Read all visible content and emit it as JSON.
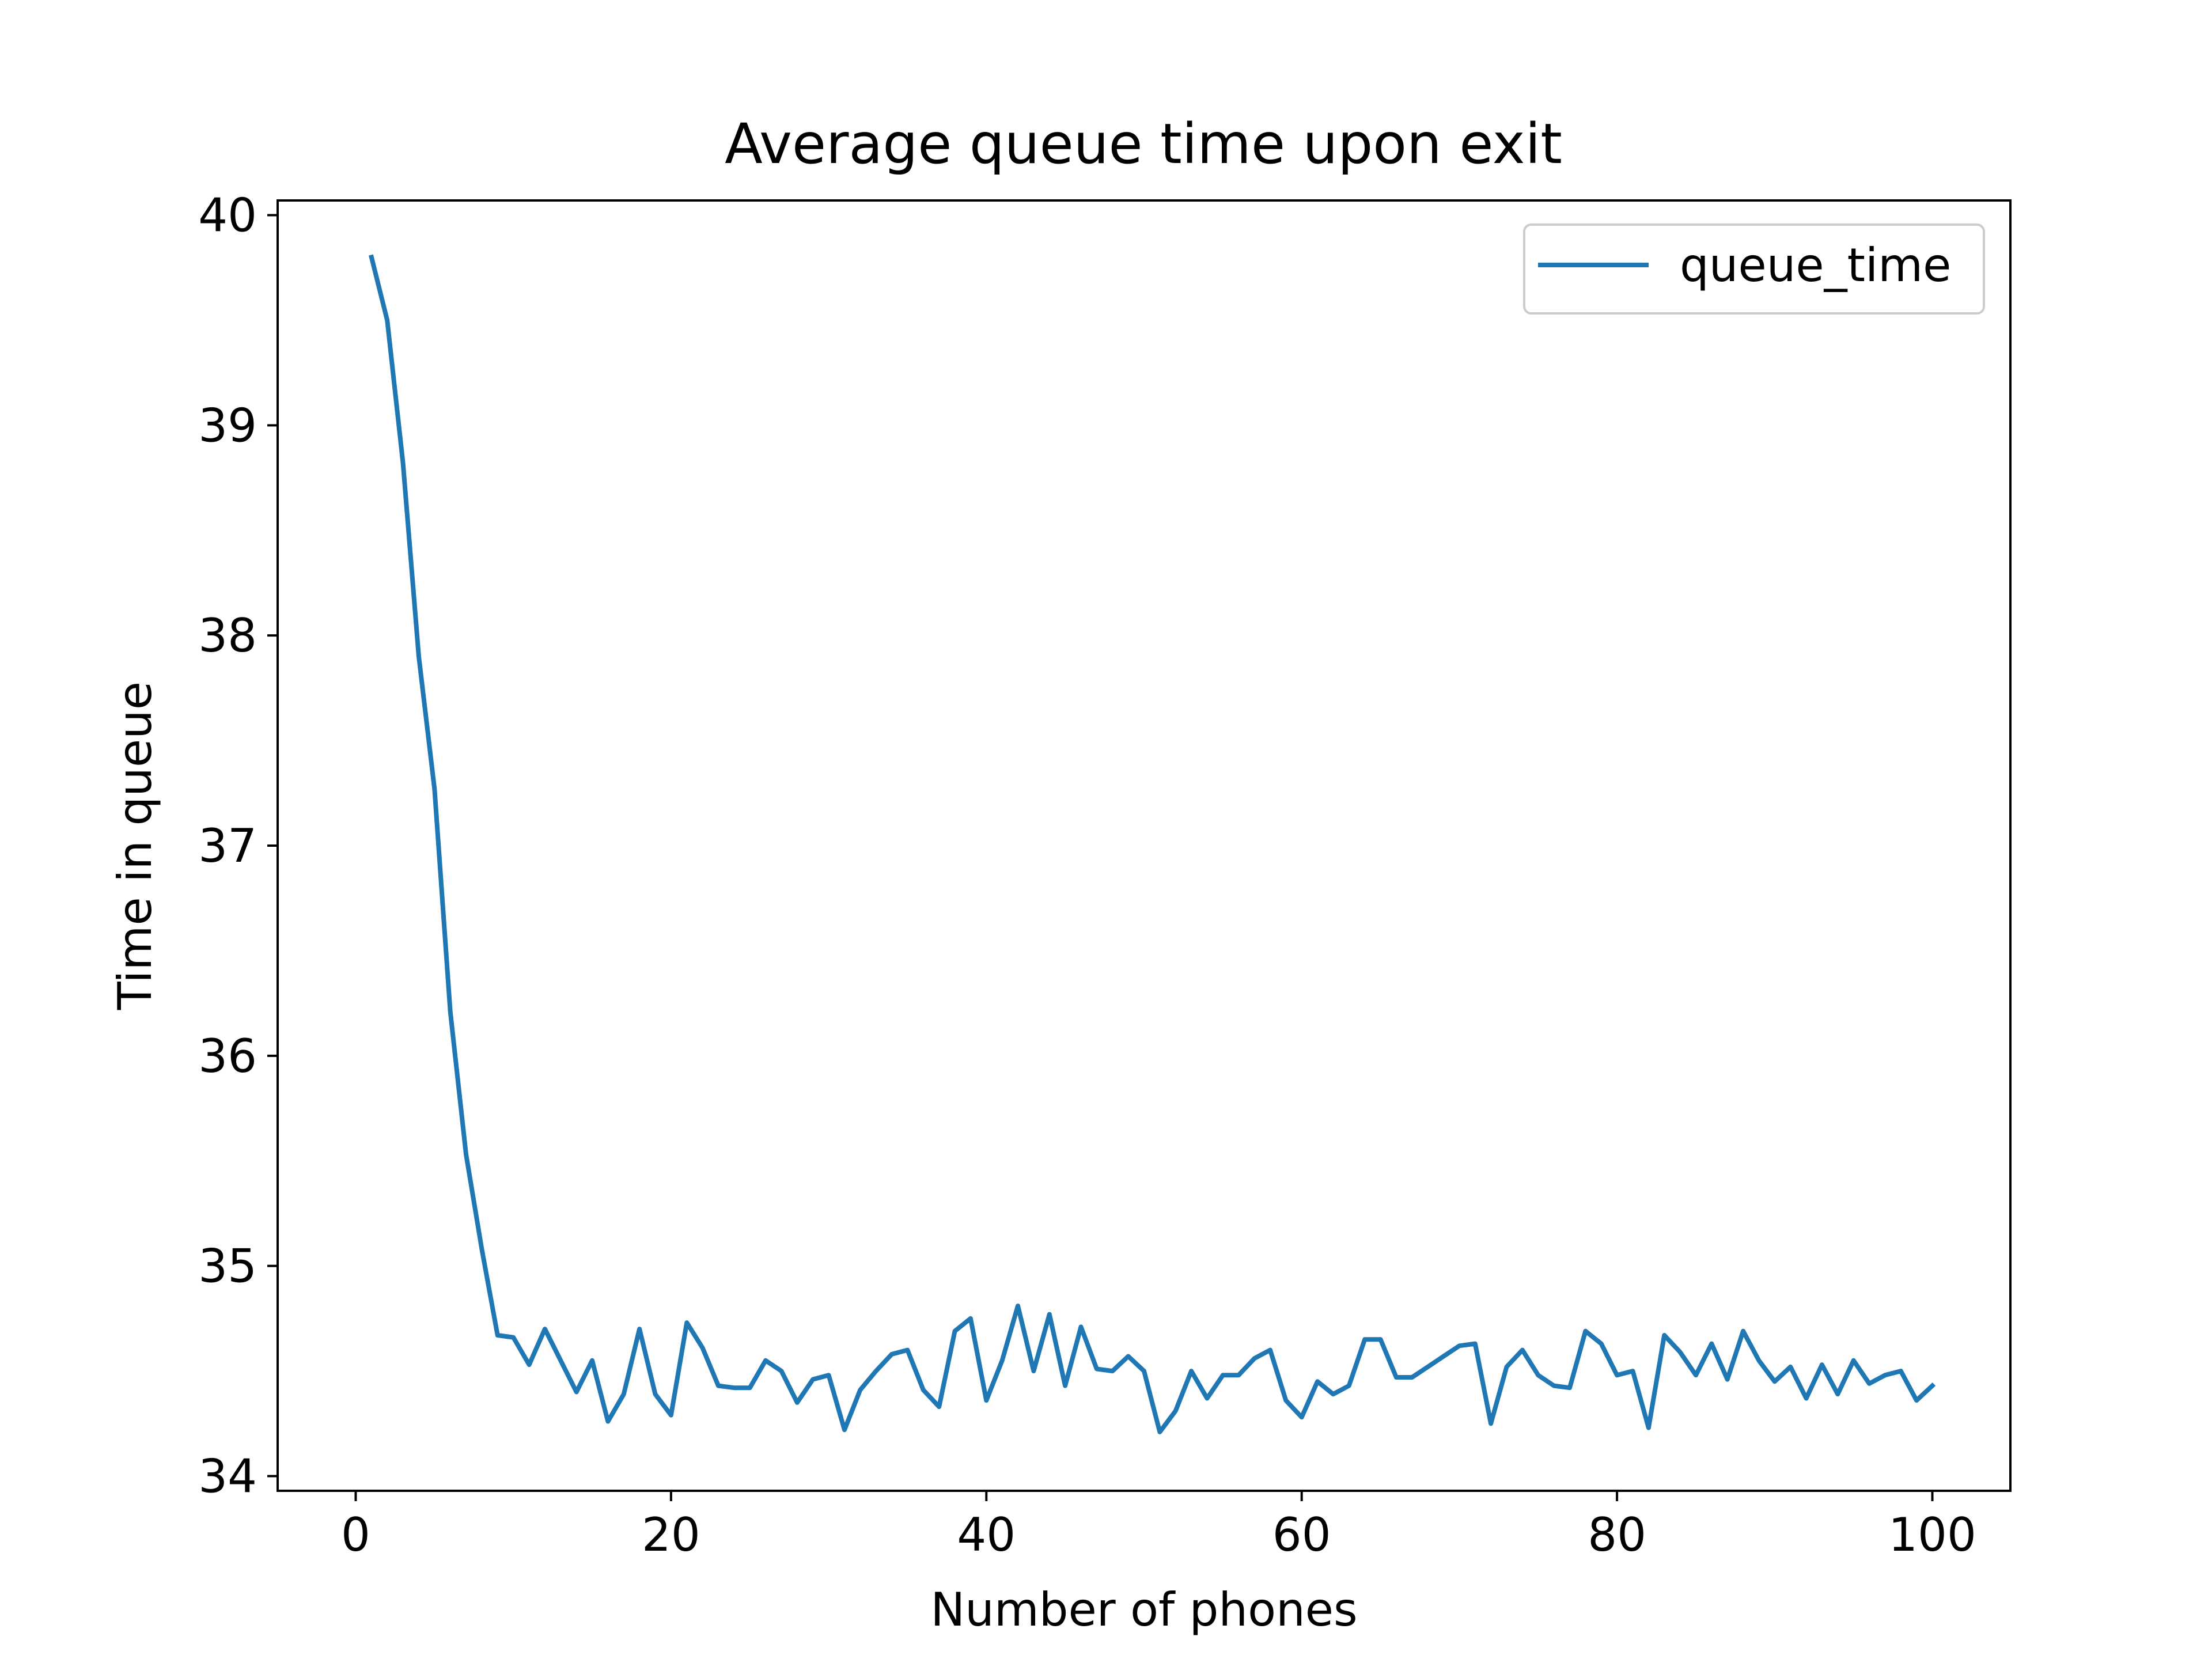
{
  "chart_data": {
    "type": "line",
    "title": "Average queue time upon exit",
    "xlabel": "Number of phones",
    "ylabel": "Time in queue",
    "xlim": [
      -4.95,
      104.95
    ],
    "ylim": [
      33.93,
      40.07
    ],
    "x_ticks": [
      0,
      20,
      40,
      60,
      80,
      100
    ],
    "y_ticks": [
      34,
      35,
      36,
      37,
      38,
      39,
      40
    ],
    "grid": false,
    "legend": {
      "placement": "top-right",
      "entries": [
        "queue_time"
      ]
    },
    "series": [
      {
        "name": "queue_time",
        "color": "#1f77b4",
        "x": [
          1,
          2,
          3,
          4,
          5,
          6,
          7,
          8,
          9,
          10,
          11,
          12,
          13,
          14,
          15,
          16,
          17,
          18,
          19,
          20,
          21,
          22,
          23,
          24,
          25,
          26,
          27,
          28,
          29,
          30,
          31,
          32,
          33,
          34,
          35,
          36,
          37,
          38,
          39,
          40,
          41,
          42,
          43,
          44,
          45,
          46,
          47,
          48,
          49,
          50,
          51,
          52,
          53,
          54,
          55,
          56,
          57,
          58,
          59,
          60,
          61,
          62,
          63,
          64,
          65,
          66,
          67,
          68,
          69,
          70,
          71,
          72,
          73,
          74,
          75,
          76,
          77,
          78,
          79,
          80,
          81,
          82,
          83,
          84,
          85,
          86,
          87,
          88,
          89,
          90,
          91,
          92,
          93,
          94,
          95,
          96,
          97,
          98,
          99,
          100
        ],
        "values": [
          39.8,
          39.5,
          38.82,
          37.9,
          37.27,
          36.21,
          35.53,
          35.08,
          34.67,
          34.66,
          34.53,
          34.7,
          34.55,
          34.4,
          34.55,
          34.26,
          34.39,
          34.7,
          34.39,
          34.29,
          34.73,
          34.61,
          34.43,
          34.42,
          34.42,
          34.55,
          34.5,
          34.35,
          34.46,
          34.48,
          34.22,
          34.41,
          34.5,
          34.58,
          34.6,
          34.41,
          34.33,
          34.69,
          34.75,
          34.36,
          34.55,
          34.81,
          34.5,
          34.77,
          34.43,
          34.71,
          34.51,
          34.5,
          34.57,
          34.5,
          34.21,
          34.31,
          34.5,
          34.37,
          34.48,
          34.48,
          34.56,
          34.6,
          34.36,
          34.28,
          34.45,
          34.39,
          34.43,
          34.65,
          34.65,
          34.47,
          34.47,
          34.52,
          34.57,
          34.62,
          34.63,
          34.25,
          34.52,
          34.6,
          34.48,
          34.43,
          34.42,
          34.69,
          34.63,
          34.48,
          34.5,
          34.23,
          34.67,
          34.59,
          34.48,
          34.63,
          34.46,
          34.69,
          34.55,
          34.45,
          34.52,
          34.37,
          34.53,
          34.39,
          34.55,
          34.44,
          34.48,
          34.5,
          34.36,
          34.43
        ]
      }
    ]
  }
}
